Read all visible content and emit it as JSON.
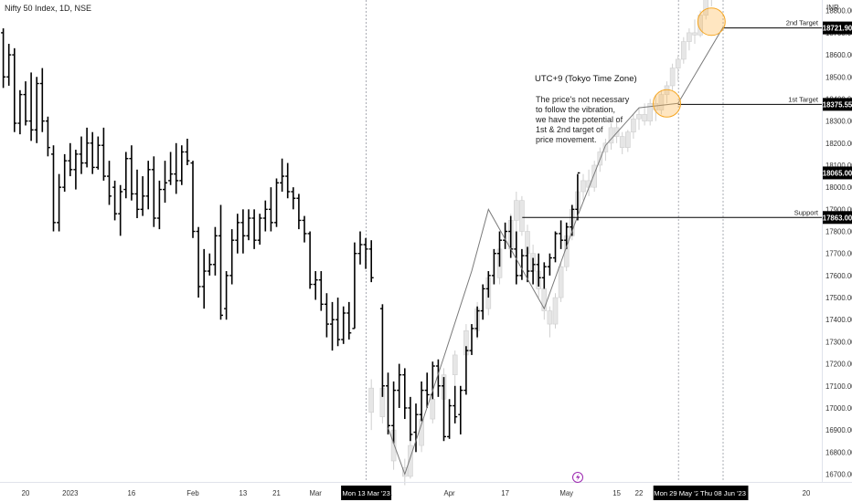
{
  "header": {
    "title": "Nifty 50 Index, 1D, NSE"
  },
  "note": {
    "title": "UTC+9 (Tokyo Time Zone)",
    "lines": [
      "The price's not necessary",
      "to follow the vibration,",
      "we have the potential of",
      "1st & 2nd target of",
      "price movement."
    ]
  },
  "chart_data": {
    "type": "ohlc",
    "currency": "INR",
    "y_axis": {
      "min": 16650,
      "max": 18950,
      "ticks": [
        16700,
        16800,
        16900,
        17000,
        17100,
        17200,
        17300,
        17400,
        17500,
        17600,
        17700,
        17800,
        17900,
        18000,
        18100,
        18200,
        18300,
        18400,
        18500,
        18600,
        18700,
        18800
      ]
    },
    "x_axis": {
      "ticks": [
        {
          "label": "20",
          "day": 0
        },
        {
          "label": "2023",
          "day": 8
        },
        {
          "label": "16",
          "day": 19
        },
        {
          "label": "Feb",
          "day": 30
        },
        {
          "label": "13",
          "day": 39
        },
        {
          "label": "21",
          "day": 45
        },
        {
          "label": "Mar",
          "day": 52
        },
        {
          "label": "21",
          "day": 65
        },
        {
          "label": "Apr",
          "day": 76
        },
        {
          "label": "17",
          "day": 86
        },
        {
          "label": "May",
          "day": 97
        },
        {
          "label": "15",
          "day": 106
        },
        {
          "label": "22",
          "day": 110
        },
        {
          "label": "20",
          "day": 140
        }
      ],
      "highlight_dates": [
        {
          "label": "Mon 13 Mar '23",
          "day": 61
        },
        {
          "label": "Mon 29 May '23",
          "day": 117
        },
        {
          "label": "Thu 08 Jun '23",
          "day": 125
        }
      ]
    },
    "price_levels": [
      {
        "name": "Support",
        "value": 17863.0
      },
      {
        "name": "1st Target",
        "value": 18375.55
      },
      {
        "name": "2nd Target",
        "value": 18721.9
      }
    ],
    "current_price": 18065.0,
    "path_points": [
      {
        "day": 65,
        "value": 16910
      },
      {
        "day": 68,
        "value": 16700
      },
      {
        "day": 75,
        "value": 17230
      },
      {
        "day": 80,
        "value": 17620
      },
      {
        "day": 83,
        "value": 17900
      },
      {
        "day": 93,
        "value": 17450
      },
      {
        "day": 99,
        "value": 17870
      },
      {
        "day": 104,
        "value": 18190
      },
      {
        "day": 110,
        "value": 18360
      },
      {
        "day": 117,
        "value": 18380
      },
      {
        "day": 125,
        "value": 18721.9
      }
    ],
    "target_circles": [
      {
        "day": 115,
        "value": 18380
      },
      {
        "day": 123,
        "value": 18750
      }
    ],
    "actual_bars": [
      [
        -4,
        18700,
        18720,
        18450,
        18500
      ],
      [
        -3,
        18500,
        18650,
        18460,
        18600
      ],
      [
        -2,
        18600,
        18630,
        18250,
        18290
      ],
      [
        -1,
        18290,
        18440,
        18240,
        18420
      ],
      [
        0,
        18420,
        18480,
        18280,
        18300
      ],
      [
        1,
        18300,
        18520,
        18210,
        18260
      ],
      [
        2,
        18260,
        18500,
        18200,
        18470
      ],
      [
        3,
        18470,
        18540,
        18250,
        18300
      ],
      [
        4,
        18300,
        18320,
        18140,
        18180
      ],
      [
        5,
        18150,
        18190,
        17800,
        17840
      ],
      [
        6,
        17840,
        18060,
        17800,
        18000
      ],
      [
        7,
        18000,
        18150,
        17980,
        18120
      ],
      [
        8,
        18120,
        18200,
        18050,
        18080
      ],
      [
        9,
        18080,
        18170,
        17990,
        18150
      ],
      [
        10,
        18150,
        18230,
        18060,
        18110
      ],
      [
        11,
        18110,
        18270,
        18090,
        18200
      ],
      [
        12,
        18200,
        18250,
        18060,
        18090
      ],
      [
        13,
        18090,
        18230,
        18080,
        18190
      ],
      [
        14,
        18190,
        18270,
        18030,
        18050
      ],
      [
        15,
        18050,
        18120,
        17920,
        17960
      ],
      [
        16,
        18000,
        18030,
        17850,
        17880
      ],
      [
        17,
        17880,
        18010,
        17780,
        17980
      ],
      [
        18,
        17990,
        18160,
        17950,
        18130
      ],
      [
        19,
        18130,
        18190,
        17940,
        17970
      ],
      [
        20,
        17970,
        18080,
        17860,
        17900
      ],
      [
        21,
        17900,
        18050,
        17870,
        17960
      ],
      [
        22,
        17960,
        18120,
        17900,
        18080
      ],
      [
        23,
        18080,
        18140,
        17820,
        17860
      ],
      [
        24,
        17860,
        18030,
        17810,
        17990
      ],
      [
        25,
        17990,
        18120,
        17930,
        18020
      ],
      [
        26,
        18030,
        18160,
        18010,
        18060
      ],
      [
        27,
        18060,
        18200,
        17970,
        18030
      ],
      [
        28,
        18030,
        18190,
        18010,
        18160
      ],
      [
        29,
        18160,
        18220,
        18100,
        18120
      ],
      [
        30,
        18110,
        18120,
        17770,
        17800
      ],
      [
        31,
        17800,
        17820,
        17500,
        17550
      ],
      [
        32,
        17550,
        17720,
        17450,
        17620
      ],
      [
        33,
        17620,
        17700,
        17600,
        17650
      ],
      [
        34,
        17650,
        17820,
        17600,
        17780
      ],
      [
        35,
        17780,
        17920,
        17400,
        17420
      ],
      [
        36,
        17450,
        17620,
        17400,
        17600
      ],
      [
        37,
        17600,
        17810,
        17560,
        17760
      ],
      [
        38,
        17760,
        17880,
        17700,
        17840
      ],
      [
        39,
        17840,
        17900,
        17700,
        17780
      ],
      [
        40,
        17780,
        17900,
        17760,
        17860
      ],
      [
        41,
        17860,
        17900,
        17720,
        17760
      ],
      [
        42,
        17760,
        17880,
        17740,
        17860
      ],
      [
        43,
        17860,
        17940,
        17800,
        17900
      ],
      [
        44,
        17900,
        18000,
        17800,
        17840
      ],
      [
        45,
        17840,
        18040,
        17820,
        18020
      ],
      [
        46,
        18020,
        18130,
        17980,
        18050
      ],
      [
        47,
        18050,
        18110,
        17950,
        17980
      ],
      [
        48,
        17980,
        18000,
        17900,
        17950
      ],
      [
        49,
        17950,
        17970,
        17810,
        17850
      ],
      [
        50,
        17850,
        17870,
        17750,
        17790
      ],
      [
        51,
        17790,
        17800,
        17540,
        17560
      ],
      [
        52,
        17560,
        17620,
        17490,
        17580
      ],
      [
        53,
        17580,
        17620,
        17440,
        17470
      ],
      [
        54,
        17470,
        17520,
        17320,
        17380
      ],
      [
        55,
        17380,
        17480,
        17260,
        17400
      ],
      [
        56,
        17400,
        17500,
        17280,
        17310
      ],
      [
        57,
        17310,
        17460,
        17290,
        17430
      ],
      [
        58,
        17430,
        17480,
        17310,
        17340
      ],
      [
        59,
        17360,
        17750,
        17360,
        17700
      ],
      [
        60,
        17700,
        17800,
        17650,
        17740
      ],
      [
        61,
        17740,
        17770,
        17630,
        17720
      ],
      [
        62,
        17720,
        17760,
        17570,
        17590
      ],
      [
        64,
        17450,
        17470,
        17050,
        17100
      ],
      [
        65,
        17100,
        17160,
        16880,
        16920
      ],
      [
        66,
        16920,
        17120,
        16840,
        17080
      ],
      [
        67,
        17080,
        17200,
        17000,
        17150
      ],
      [
        68,
        17150,
        17180,
        16950,
        17000
      ],
      [
        69,
        17000,
        17050,
        16850,
        16880
      ],
      [
        70,
        16890,
        17020,
        16800,
        16970
      ],
      [
        71,
        16970,
        17120,
        16940,
        17080
      ],
      [
        72,
        17080,
        17160,
        17000,
        17060
      ],
      [
        73,
        17060,
        17210,
        17040,
        17190
      ],
      [
        74,
        17190,
        17220,
        17050,
        17100
      ],
      [
        75,
        17100,
        17140,
        16850,
        16870
      ],
      [
        76,
        16870,
        17040,
        16860,
        17010
      ],
      [
        77,
        17010,
        17100,
        16930,
        16960
      ],
      [
        78,
        16970,
        17100,
        16880,
        17080
      ],
      [
        79,
        17080,
        17280,
        17060,
        17260
      ],
      [
        80,
        17260,
        17380,
        17240,
        17360
      ],
      [
        81,
        17360,
        17460,
        17320,
        17440
      ],
      [
        82,
        17440,
        17560,
        17400,
        17540
      ],
      [
        83,
        17540,
        17620,
        17500,
        17600
      ],
      [
        84,
        17600,
        17720,
        17560,
        17700
      ],
      [
        85,
        17700,
        17800,
        17640,
        17760
      ],
      [
        86,
        17760,
        17840,
        17720,
        17800
      ],
      [
        87,
        17800,
        17870,
        17680,
        17720
      ],
      [
        88,
        17720,
        17800,
        17560,
        17600
      ],
      [
        89,
        17600,
        17720,
        17580,
        17690
      ],
      [
        90,
        17690,
        17730,
        17570,
        17620
      ],
      [
        91,
        17620,
        17680,
        17560,
        17650
      ],
      [
        92,
        17650,
        17700,
        17550,
        17590
      ],
      [
        93,
        17590,
        17660,
        17540,
        17640
      ],
      [
        94,
        17640,
        17700,
        17600,
        17680
      ],
      [
        95,
        17680,
        17800,
        17660,
        17790
      ],
      [
        96,
        17790,
        17850,
        17720,
        17760
      ],
      [
        97,
        17760,
        17840,
        17720,
        17820
      ],
      [
        98,
        17820,
        17920,
        17780,
        17900
      ],
      [
        99,
        17900,
        18060,
        17850,
        18065
      ]
    ],
    "projected_bars": [
      [
        62,
        16980,
        17130,
        16900,
        17090
      ],
      [
        64,
        17090,
        17110,
        16930,
        16960
      ],
      [
        66,
        16900,
        16920,
        16720,
        16760
      ],
      [
        68,
        16730,
        16770,
        16650,
        16690
      ],
      [
        69,
        16690,
        16850,
        16680,
        16830
      ],
      [
        71,
        16830,
        16980,
        16800,
        16950
      ],
      [
        73,
        16950,
        17070,
        16930,
        17040
      ],
      [
        75,
        17040,
        17180,
        17000,
        17150
      ],
      [
        77,
        17150,
        17260,
        17100,
        17240
      ],
      [
        79,
        17240,
        17380,
        17200,
        17350
      ],
      [
        81,
        17350,
        17480,
        17310,
        17450
      ],
      [
        83,
        17450,
        17620,
        17420,
        17590
      ],
      [
        85,
        17590,
        17750,
        17560,
        17720
      ],
      [
        87,
        17720,
        17880,
        17680,
        17850
      ],
      [
        88,
        17850,
        17980,
        17780,
        17940
      ],
      [
        89,
        17940,
        17960,
        17780,
        17800
      ],
      [
        90,
        17800,
        17830,
        17660,
        17700
      ],
      [
        91,
        17700,
        17740,
        17580,
        17620
      ],
      [
        92,
        17620,
        17640,
        17500,
        17540
      ],
      [
        93,
        17540,
        17570,
        17400,
        17440
      ],
      [
        94,
        17440,
        17460,
        17320,
        17380
      ],
      [
        95,
        17380,
        17520,
        17360,
        17500
      ],
      [
        96,
        17500,
        17660,
        17480,
        17640
      ],
      [
        97,
        17640,
        17800,
        17620,
        17780
      ],
      [
        98,
        17780,
        17920,
        17760,
        17900
      ],
      [
        99,
        17900,
        18000,
        17860,
        17980
      ],
      [
        100,
        17980,
        18060,
        17940,
        18030
      ],
      [
        101,
        18030,
        18080,
        17960,
        18000
      ],
      [
        102,
        18000,
        18120,
        17980,
        18100
      ],
      [
        103,
        18100,
        18180,
        18070,
        18160
      ],
      [
        104,
        18160,
        18220,
        18120,
        18200
      ],
      [
        105,
        18200,
        18290,
        18170,
        18270
      ],
      [
        106,
        18270,
        18300,
        18200,
        18230
      ],
      [
        107,
        18230,
        18250,
        18150,
        18180
      ],
      [
        108,
        18180,
        18260,
        18160,
        18250
      ],
      [
        109,
        18250,
        18330,
        18220,
        18310
      ],
      [
        110,
        18310,
        18360,
        18260,
        18330
      ],
      [
        111,
        18330,
        18380,
        18280,
        18300
      ],
      [
        112,
        18300,
        18400,
        18280,
        18380
      ],
      [
        113,
        18380,
        18420,
        18300,
        18350
      ],
      [
        114,
        18350,
        18440,
        18330,
        18420
      ],
      [
        115,
        18420,
        18480,
        18380,
        18460
      ],
      [
        116,
        18460,
        18560,
        18440,
        18540
      ],
      [
        117,
        18540,
        18600,
        18480,
        18580
      ],
      [
        118,
        18580,
        18680,
        18560,
        18660
      ],
      [
        119,
        18660,
        18720,
        18620,
        18700
      ],
      [
        120,
        18700,
        18760,
        18650,
        18690
      ],
      [
        121,
        18690,
        18800,
        18680,
        18780
      ],
      [
        122,
        18780,
        18900,
        18760,
        18860
      ],
      [
        123,
        18860,
        18920,
        18820,
        18900
      ]
    ]
  }
}
